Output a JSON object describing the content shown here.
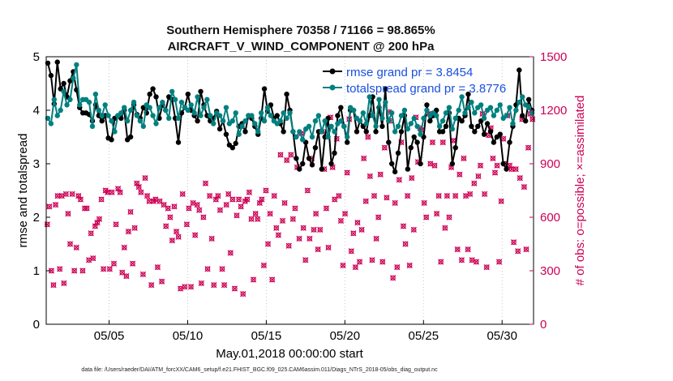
{
  "chart_data": {
    "type": "line",
    "title": "Southern Hemisphere 70358 / 71166 = 98.865%",
    "subtitle": "AIRCRAFT_V_WIND_COMPONENT @ 200 hPa",
    "xlabel": "May.01,2018 00:00:00 start",
    "ylabel_left": "rmse and totalspread",
    "ylabel_right": "# of obs: o=possible; ×=assimilated",
    "xlim": [
      1,
      32
    ],
    "ylim_left": [
      0,
      5
    ],
    "ylim_right": [
      0,
      1500
    ],
    "x_ticks": [
      5,
      10,
      15,
      20,
      25,
      30
    ],
    "x_tick_labels": [
      "05/05",
      "05/10",
      "05/15",
      "05/20",
      "05/25",
      "05/30"
    ],
    "y_ticks_left": [
      "0",
      "1",
      "2",
      "3",
      "4",
      "5"
    ],
    "y_ticks_right": [
      "0",
      "300",
      "600",
      "900",
      "1200",
      "1500"
    ],
    "legend": [
      "rmse grand pr = 3.8454",
      "totalspread grand pr = 3.8776"
    ],
    "colors": {
      "rmse": "#000000",
      "spread": "#00807f",
      "obs": "#cc0055",
      "legend_text": "#1a4fe0"
    },
    "series": [
      {
        "name": "rmse",
        "axis": "left",
        "values": [
          4.88,
          4.65,
          4.12,
          4.9,
          4.4,
          4.5,
          4.25,
          4.55,
          4.72,
          4.38,
          4.05,
          3.95,
          3.95,
          3.92,
          3.8,
          4.1,
          3.9,
          3.8,
          3.9,
          3.48,
          3.45,
          3.85,
          3.9,
          3.85,
          4.0,
          3.45,
          3.5,
          4.1,
          3.92,
          3.85,
          4.05,
          3.95,
          4.3,
          4.4,
          4.25,
          3.85,
          4.1,
          4.0,
          4.25,
          4.2,
          3.85,
          3.4,
          3.95,
          4.05,
          4.3,
          4.0,
          3.9,
          3.8,
          4.35,
          4.1,
          3.9,
          3.8,
          3.85,
          3.98,
          3.65,
          3.8,
          3.55,
          3.35,
          3.3,
          3.38,
          3.7,
          3.75,
          3.6,
          3.9,
          3.85,
          3.7,
          3.55,
          3.85,
          4.4,
          3.98,
          4.1,
          3.85,
          3.9,
          3.75,
          3.6,
          4.3,
          4.0,
          3.6,
          3.1,
          2.9,
          3.0,
          3.4,
          3.1,
          2.98,
          3.3,
          3.6,
          2.9,
          3.5,
          3.85,
          3.0,
          3.2,
          3.9,
          4.05,
          3.7,
          3.4,
          4.0,
          4.0,
          3.6,
          3.8,
          3.7,
          3.6,
          3.9,
          4.25,
          3.6,
          4.05,
          3.7,
          4.4,
          3.4,
          3.0,
          2.85,
          3.2,
          3.6,
          3.9,
          2.9,
          3.3,
          3.5,
          3.4,
          3.0,
          3.5,
          4.1,
          3.8,
          3.9,
          4.0,
          3.6,
          3.6,
          3.7,
          3.95,
          3.0,
          3.3,
          3.85,
          3.8,
          3.9,
          4.3,
          3.7,
          3.6,
          3.7,
          3.8,
          3.55,
          3.75,
          3.6,
          3.4,
          3.5,
          3.55,
          3.0,
          2.9,
          3.4,
          3.7,
          4.1,
          4.75,
          3.9,
          3.8,
          4.2,
          4.0
        ]
      },
      {
        "name": "totalspread",
        "axis": "left",
        "values": [
          3.85,
          3.75,
          4.2,
          3.9,
          4.0,
          4.35,
          4.1,
          4.2,
          4.6,
          4.85,
          4.1,
          4.2,
          4.2,
          4.15,
          3.7,
          4.3,
          4.0,
          3.9,
          4.1,
          3.9,
          3.8,
          3.6,
          3.9,
          3.95,
          4.05,
          3.8,
          4.0,
          4.15,
          3.9,
          3.8,
          3.7,
          4.1,
          4.05,
          3.9,
          3.75,
          4.05,
          4.15,
          4.0,
          3.85,
          4.35,
          4.2,
          3.85,
          4.15,
          4.05,
          4.0,
          4.1,
          3.95,
          4.25,
          3.9,
          4.05,
          4.2,
          3.9,
          3.75,
          3.95,
          3.9,
          3.8,
          4.05,
          3.75,
          3.8,
          3.95,
          3.55,
          3.7,
          3.8,
          3.9,
          3.9,
          3.75,
          3.6,
          3.95,
          3.8,
          4.05,
          3.9,
          3.8,
          3.75,
          3.8,
          3.95,
          3.85,
          3.95,
          3.6,
          3.5,
          3.6,
          3.45,
          3.65,
          3.7,
          3.5,
          3.8,
          3.9,
          3.6,
          3.8,
          3.5,
          3.7,
          3.6,
          3.75,
          3.8,
          3.7,
          3.5,
          4.05,
          4.0,
          3.85,
          3.8,
          3.95,
          3.75,
          4.25,
          3.9,
          3.7,
          4.2,
          3.85,
          4.15,
          3.8,
          3.95,
          3.6,
          3.7,
          3.9,
          4.0,
          3.65,
          3.75,
          3.85,
          3.7,
          3.55,
          3.85,
          4.0,
          3.9,
          3.95,
          3.9,
          3.7,
          3.8,
          3.95,
          4.05,
          3.65,
          3.85,
          4.0,
          4.25,
          3.95,
          4.05,
          4.15,
          3.95,
          4.05,
          4.1,
          3.85,
          4.0,
          4.05,
          3.9,
          4.0,
          4.1,
          3.85,
          3.9,
          4.05,
          3.75,
          4.0,
          4.15,
          4.25,
          4.1,
          4.05,
          3.95
        ]
      },
      {
        "name": "obs_possible",
        "axis": "right",
        "values": [
          560,
          660,
          300,
          220,
          670,
          720,
          310,
          720,
          230,
          730,
          620,
          450,
          730,
          300,
          430,
          720,
          700,
          300,
          650,
          650,
          360,
          510,
          370,
          550,
          570,
          590,
          700,
          310,
          750,
          740,
          310,
          740,
          340,
          560,
          760,
          740,
          290,
          430,
          270,
          520,
          630,
          340,
          540,
          790,
          770,
          740,
          280,
          820,
          720,
          690,
          220,
          690,
          700,
          320,
          690,
          240,
          670,
          550,
          650,
          600,
          470,
          660,
          520,
          490,
          200,
          730,
          210,
          560,
          650,
          210,
          680,
          500,
          670,
          640,
          230,
          600,
          790,
          310,
          720,
          480,
          220,
          700,
          720,
          640,
          310,
          220,
          670,
          730,
          400,
          700,
          200,
          610,
          700,
          660,
          170,
          690,
          700,
          740,
          590,
          250,
          620,
          590,
          680,
          700,
          330,
          750,
          450,
          620,
          250,
          720,
          540,
          500,
          950,
          580,
          680,
          920,
          440,
          950,
          590,
          650,
          880,
          480,
          1070,
          540,
          360,
          750,
          480,
          930,
          530,
          620,
          420,
          530,
          1080,
          870,
          650,
          430,
          1160,
          880,
          700,
          1040,
          720,
          580,
          330,
          620,
          850,
          1150,
          410,
          510,
          320,
          570,
          350,
          530,
          930,
          690,
          1050,
          830,
          360,
          720,
          480,
          600,
          840,
          350,
          990,
          710,
          1190,
          1140,
          260,
          680,
          320,
          810,
          1020,
          550,
          450,
          720,
          330,
          820,
          530,
          1160,
          910,
          1100,
          1090,
          680,
          600,
          1180,
          900,
          1020,
          890,
          620,
          720,
          350,
          1020,
          540,
          720,
          600,
          880,
          1030,
          720,
          420,
          840,
          360,
          930,
          720,
          420,
          730,
          360,
          790,
          350,
          830,
          890,
          1180,
          730,
          320,
          1060,
          1100,
          930,
          850,
          890,
          350,
          690,
          1040,
          900,
          1170,
          890,
          870,
          460,
          870,
          410,
          820,
          1150,
          770,
          420,
          990,
          1180,
          1150
        ]
      }
    ]
  },
  "footer_text": "data file: /Users/raeder/DAI/ATM_forcXX/CAM6_setup/f.e21.FHIST_BGC.f09_025.CAM6assim.011/Diags_NTrS_2018-05/obs_diag_output.nc"
}
